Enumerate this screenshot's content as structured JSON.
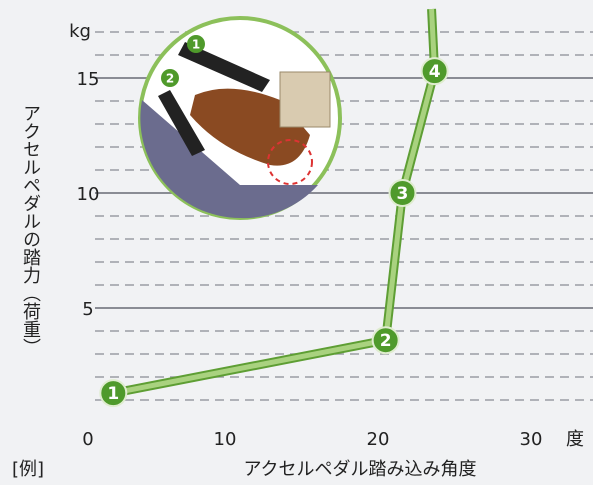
{
  "chart_data": {
    "type": "line",
    "y_unit": "kg",
    "y_label": "アクセルペダルの踏力（荷重）",
    "x_label": "アクセルペダル踏み込み角度",
    "x_unit": "度",
    "note": "[例]",
    "x": [
      2.7,
      20.5,
      21.6,
      23.7,
      23.5
    ],
    "series": [
      {
        "name": null,
        "color": "#a9d27f",
        "values": [
          1.3,
          3.6,
          10,
          15.3,
          18
        ]
      }
    ],
    "point_labels": [
      "1",
      "2",
      "3",
      "4",
      null
    ],
    "point_color": "#4f9a2b",
    "origin_label": "0",
    "xlim": [
      0,
      30
    ],
    "xticks": [
      10,
      20,
      30
    ],
    "ylim": [
      0,
      18
    ],
    "yticks": [
      5,
      10,
      15
    ],
    "grid": true,
    "minor_grid_step": 1,
    "inset_labels": [
      "1",
      "2"
    ]
  }
}
